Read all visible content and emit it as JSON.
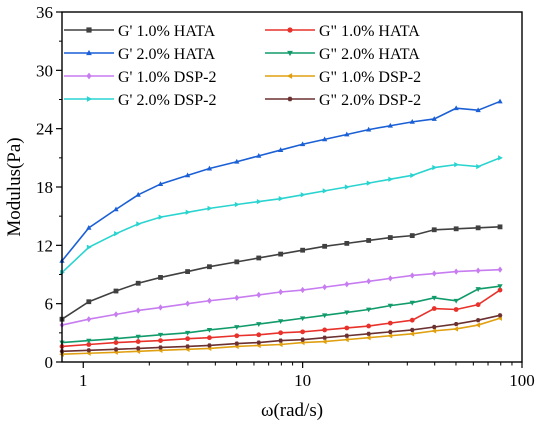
{
  "chart_data": {
    "type": "line",
    "title": "",
    "xlabel": "ω(rad/s)",
    "ylabel": "Modulus(Pa)",
    "xscale": "log",
    "xlim": [
      0.8,
      100
    ],
    "ylim": [
      0,
      36
    ],
    "xticks": [
      1,
      10,
      100
    ],
    "yticks": [
      0,
      6,
      12,
      18,
      24,
      30,
      36
    ],
    "legend_position": "top-left",
    "legend_columns": 2,
    "x": [
      0.8,
      1.06,
      1.41,
      1.78,
      2.25,
      2.99,
      3.76,
      5.01,
      6.31,
      7.94,
      10.0,
      12.6,
      15.9,
      20.0,
      25.1,
      31.6,
      39.8,
      50.1,
      63.1,
      79.4
    ],
    "series": [
      {
        "name": "G' 1.0% HATA",
        "color": "#404040",
        "marker": "square",
        "values": [
          4.4,
          6.2,
          7.3,
          8.1,
          8.7,
          9.3,
          9.8,
          10.3,
          10.7,
          11.1,
          11.5,
          11.9,
          12.2,
          12.5,
          12.8,
          13.0,
          13.6,
          13.7,
          13.8,
          13.9
        ]
      },
      {
        "name": "G\" 1.0% HATA",
        "color": "#e8312a",
        "marker": "circle",
        "values": [
          1.6,
          1.8,
          2.0,
          2.1,
          2.2,
          2.4,
          2.5,
          2.7,
          2.8,
          3.0,
          3.1,
          3.3,
          3.5,
          3.7,
          4.0,
          4.3,
          5.5,
          5.4,
          5.9,
          7.4
        ]
      },
      {
        "name": "G' 2.0% HATA",
        "color": "#1a5fd6",
        "marker": "triangle-up",
        "values": [
          10.4,
          13.8,
          15.7,
          17.2,
          18.3,
          19.2,
          19.9,
          20.6,
          21.2,
          21.8,
          22.4,
          22.9,
          23.4,
          23.9,
          24.3,
          24.7,
          25.0,
          26.1,
          25.9,
          26.8
        ]
      },
      {
        "name": "G\" 2.0% HATA",
        "color": "#119b6a",
        "marker": "triangle-down",
        "values": [
          2.0,
          2.2,
          2.4,
          2.6,
          2.8,
          3.0,
          3.3,
          3.6,
          3.9,
          4.2,
          4.5,
          4.8,
          5.1,
          5.4,
          5.8,
          6.1,
          6.6,
          6.3,
          7.5,
          7.8
        ]
      },
      {
        "name": "G' 1.0% DSP-2",
        "color": "#c77cf0",
        "marker": "diamond",
        "values": [
          3.8,
          4.4,
          4.9,
          5.3,
          5.6,
          6.0,
          6.3,
          6.6,
          6.9,
          7.2,
          7.4,
          7.7,
          8.0,
          8.3,
          8.6,
          8.9,
          9.1,
          9.3,
          9.4,
          9.5
        ]
      },
      {
        "name": "G\" 1.0% DSP-2",
        "color": "#e0a010",
        "marker": "triangle-left",
        "values": [
          0.8,
          0.9,
          1.0,
          1.1,
          1.2,
          1.3,
          1.4,
          1.6,
          1.7,
          1.8,
          2.0,
          2.1,
          2.3,
          2.5,
          2.7,
          2.9,
          3.2,
          3.4,
          3.8,
          4.5
        ]
      },
      {
        "name": "G' 2.0% DSP-2",
        "color": "#29d4d0",
        "marker": "triangle-right",
        "values": [
          9.2,
          11.8,
          13.2,
          14.2,
          14.9,
          15.4,
          15.8,
          16.2,
          16.5,
          16.8,
          17.2,
          17.6,
          18.0,
          18.4,
          18.8,
          19.2,
          20.0,
          20.3,
          20.1,
          21.0
        ]
      },
      {
        "name": "G\" 2.0% DSP-2",
        "color": "#6b3030",
        "marker": "hexagon",
        "values": [
          1.1,
          1.2,
          1.3,
          1.4,
          1.5,
          1.6,
          1.7,
          1.9,
          2.0,
          2.2,
          2.3,
          2.5,
          2.7,
          2.9,
          3.1,
          3.3,
          3.6,
          3.9,
          4.3,
          4.8
        ]
      }
    ]
  }
}
